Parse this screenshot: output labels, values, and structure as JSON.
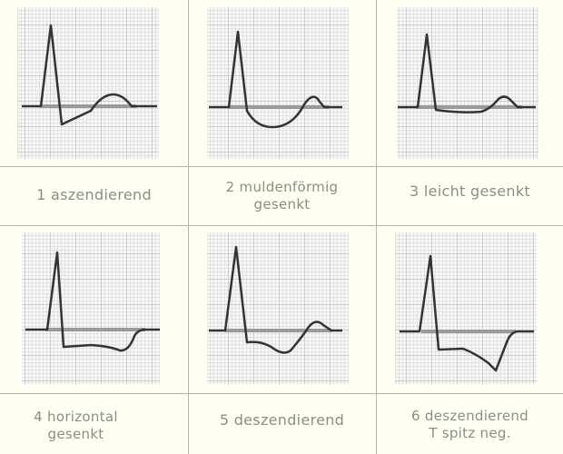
{
  "cells": [
    {
      "line1": "1 aszendierend",
      "line2": ""
    },
    {
      "line1": "2 muldenförmig",
      "line2": "gesenkt"
    },
    {
      "line1": "3 leicht gesenkt",
      "line2": ""
    },
    {
      "line1": "4 horizontal",
      "line2": "gesenkt"
    },
    {
      "line1": "5 deszendierend",
      "line2": ""
    },
    {
      "line1": "6 deszendierend",
      "line2": "T spitz neg."
    }
  ]
}
